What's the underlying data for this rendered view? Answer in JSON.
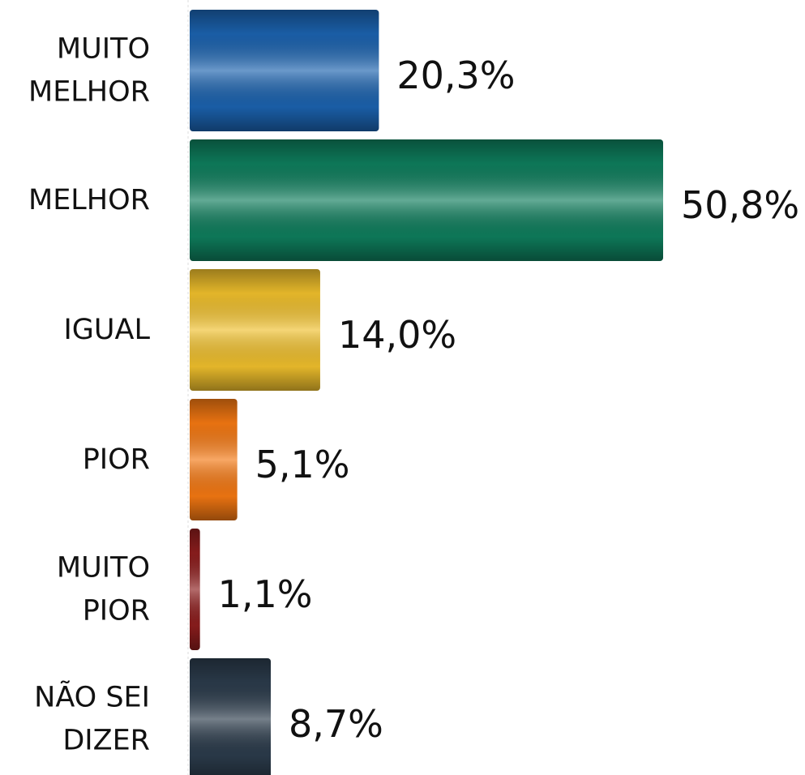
{
  "chart_data": {
    "type": "bar",
    "orientation": "horizontal",
    "categories": [
      "MUITO MELHOR",
      "MELHOR",
      "IGUAL",
      "PIOR",
      "MUITO PIOR",
      "NÃO SEI DIZER"
    ],
    "values": [
      20.3,
      50.8,
      14.0,
      5.1,
      1.1,
      8.7
    ],
    "value_labels": [
      "20,3%",
      "50,8%",
      "14,0%",
      "5,1%",
      "1,1%",
      "8,7%"
    ],
    "colors": [
      "#1b62ae",
      "#0e7d5c",
      "#efbf2c",
      "#f47812",
      "#8c1d1d",
      "#2b3b4b"
    ]
  }
}
